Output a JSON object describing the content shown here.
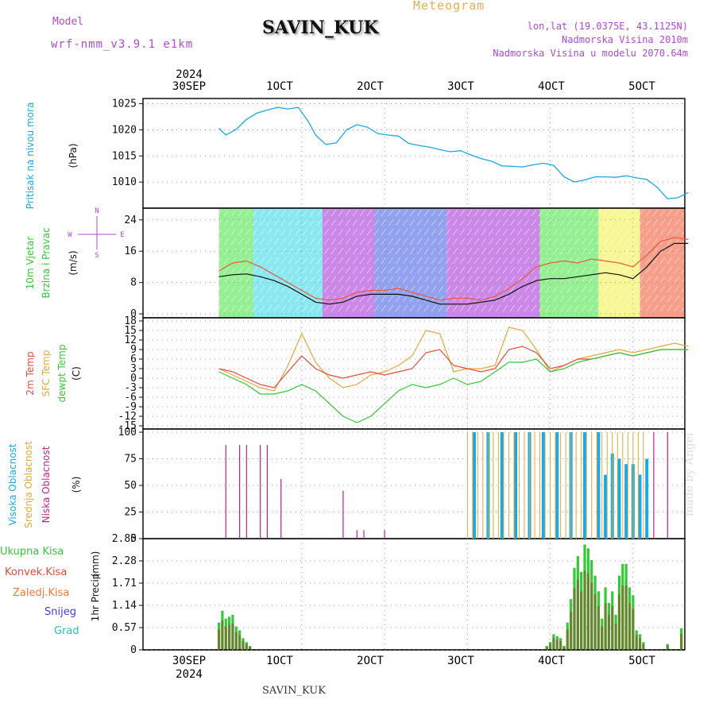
{
  "header": {
    "model_label": "Model",
    "model_name": "wrf-nmm_v3.9.1 e1km",
    "station": "SAVIN_KUK",
    "meteogram_title": "Meteogram",
    "coords": "lon,lat (19.0375E, 43.1125N)",
    "elevation": "Nadmorska Visina 2010m",
    "model_elevation": "Nadmorska Visina u modelu 2070.64m",
    "credit": "made by Angel",
    "footer_station": "SAVIN_KUK"
  },
  "colors": {
    "pressure": "#1ba8e6",
    "wind_avg": "#111111",
    "wind_gust": "#ee5a3a",
    "t2m": "#e64b3c",
    "sfc": "#e0a93c",
    "dewpt": "#35c837",
    "cloud_high": "#1ba8e6",
    "cloud_mid": "#e0a93c",
    "cloud_low": "#c0208a",
    "precip_total": "#35c837",
    "precip_conv": "#e64b3c",
    "precip_ice": "#f07a3a",
    "snow": "#4040e0",
    "grad": "#30c0b0"
  },
  "chart_data": {
    "type": "line",
    "x_unit": "hours since 2024-09-29 00 UTC",
    "x_range": [
      -22,
      135
    ],
    "top_ticks": [
      {
        "x": 24,
        "label": "30SEP",
        "year": "2024"
      },
      {
        "x": 48,
        "label": "1OCT"
      },
      {
        "x": 72,
        "label": "2OCT"
      },
      {
        "x": 96,
        "label": "3OCT"
      },
      {
        "x": 120,
        "label": "4OCT"
      },
      {
        "x": 144,
        "label": "5OCT"
      }
    ],
    "top_labels": {
      "year": "2024",
      "d1": "30SEP",
      "d2": "1OCT",
      "d3": "2OCT",
      "d4": "3OCT",
      "d5": "4OCT",
      "d6": "5OCT"
    },
    "bottom_labels": {
      "d1": "30SEP",
      "d2": "1OCT",
      "d3": "2OCT",
      "d4": "3OCT",
      "d5": "4OCT",
      "d6": "5OCT",
      "year": "2024"
    },
    "panels": {
      "pressure": {
        "ylabel": "Pritisak na nivou mora",
        "unit": "(hPa)",
        "ylim": [
          1005,
          1026
        ],
        "yticks": [
          "1010",
          "1015",
          "1020",
          "1025"
        ],
        "x": [
          0,
          2,
          5,
          8,
          11,
          14,
          17,
          20,
          23,
          26,
          28,
          31,
          34,
          37,
          40,
          43,
          46,
          49,
          52,
          55,
          58,
          61,
          64,
          67,
          70,
          73,
          76,
          79,
          82,
          85,
          88,
          91,
          94,
          97,
          100,
          103,
          106,
          109,
          112,
          115,
          118,
          121,
          124,
          127,
          130,
          133,
          136,
          139,
          142,
          145,
          148,
          151,
          154,
          157
        ],
        "values": [
          1020.3,
          1019.0,
          1020.1,
          1022.0,
          1023.2,
          1023.8,
          1024.3,
          1024.0,
          1024.3,
          1021.5,
          1019.0,
          1017.2,
          1017.5,
          1020.0,
          1021.0,
          1020.5,
          1019.3,
          1019.0,
          1018.8,
          1017.4,
          1017.0,
          1016.7,
          1016.2,
          1015.8,
          1016.0,
          1015.2,
          1014.5,
          1014.0,
          1013.1,
          1013.0,
          1012.9,
          1013.3,
          1013.6,
          1013.2,
          1011.0,
          1010.0,
          1010.4,
          1011.0,
          1011.0,
          1010.9,
          1011.2,
          1010.8,
          1010.5,
          1009.0,
          1006.8,
          1007.0,
          1008.0,
          1008.2,
          1009.0,
          1011.0,
          1013.5,
          1014.5,
          1014.5,
          1014.2
        ]
      },
      "wind": {
        "ylabel_1": "10m Vjetar",
        "ylabel_2": "Brzina i Pravac",
        "unit": "(m/s)",
        "compass": "N",
        "compass_e": "E",
        "compass_w": "W",
        "compass_s": "S",
        "ylim": [
          -1,
          27
        ],
        "yticks": [
          "0",
          "8",
          "16",
          "24"
        ],
        "x": [
          0,
          4,
          8,
          12,
          16,
          20,
          24,
          28,
          32,
          36,
          40,
          44,
          48,
          52,
          56,
          60,
          64,
          68,
          72,
          76,
          80,
          84,
          88,
          92,
          96,
          100,
          104,
          108,
          112,
          116,
          120,
          124,
          128,
          132,
          136,
          140,
          144,
          148,
          152,
          156
        ],
        "avg": [
          9.5,
          10.0,
          10.2,
          9.5,
          8.5,
          7.0,
          5.0,
          3.0,
          2.5,
          3.0,
          4.5,
          5.0,
          5.0,
          5.0,
          4.5,
          3.5,
          2.5,
          2.5,
          2.5,
          3.0,
          3.5,
          5.0,
          7.0,
          8.5,
          9.0,
          9.0,
          9.5,
          10.0,
          10.5,
          10.0,
          9.0,
          12.0,
          16.0,
          18.0,
          18.0,
          15.0,
          12.0,
          8.5,
          7.0,
          8.0
        ],
        "gust": [
          11.0,
          13.0,
          13.5,
          12.0,
          10.0,
          8.0,
          6.0,
          4.0,
          3.5,
          4.0,
          5.5,
          6.0,
          6.0,
          6.5,
          5.5,
          4.5,
          3.5,
          4.0,
          4.0,
          3.5,
          4.5,
          6.5,
          9.0,
          12.0,
          13.0,
          13.5,
          13.0,
          14.0,
          13.5,
          13.0,
          12.0,
          15.0,
          18.5,
          19.5,
          19.0,
          17.0,
          14.5,
          11.0,
          10.0,
          11.5
        ],
        "bands": [
          {
            "x0": 0,
            "x1": 10,
            "color": "green"
          },
          {
            "x0": 10,
            "x1": 30,
            "color": "cyan"
          },
          {
            "x0": 30,
            "x1": 45,
            "color": "purple"
          },
          {
            "x0": 45,
            "x1": 66,
            "color": "blue"
          },
          {
            "x0": 66,
            "x1": 93,
            "color": "purple"
          },
          {
            "x0": 93,
            "x1": 110,
            "color": "green"
          },
          {
            "x0": 110,
            "x1": 122,
            "color": "yellow"
          },
          {
            "x0": 122,
            "x1": 138,
            "color": "red"
          },
          {
            "x0": 138,
            "x1": 160,
            "color": "cyan"
          }
        ]
      },
      "temp": {
        "label_t2": "2m Temp",
        "label_sfc": "SFC Temp",
        "label_dew": "dewpt Temp",
        "unit": "(C)",
        "ylim": [
          -16,
          19
        ],
        "yticks": [
          "-15",
          "-12",
          "-9",
          "-6",
          "-3",
          "0",
          "3",
          "6",
          "9",
          "12",
          "15",
          "18"
        ],
        "x": [
          0,
          4,
          8,
          12,
          16,
          20,
          24,
          28,
          32,
          36,
          40,
          44,
          48,
          52,
          56,
          60,
          64,
          68,
          72,
          76,
          80,
          84,
          88,
          92,
          96,
          100,
          104,
          108,
          112,
          116,
          120,
          124,
          128,
          132,
          136,
          140,
          144,
          148,
          152,
          156
        ],
        "t2m": [
          3,
          2,
          0,
          -2,
          -3,
          2,
          7,
          3,
          1,
          0,
          1,
          2,
          1,
          2,
          3,
          8,
          9,
          4,
          3,
          2,
          3,
          9,
          10,
          8,
          3,
          4,
          6,
          6,
          7,
          8,
          7,
          8,
          9,
          9,
          9,
          8,
          6,
          5,
          5,
          6
        ],
        "sfc": [
          3,
          1,
          -1,
          -3,
          -4,
          4,
          14,
          5,
          0,
          -3,
          -2,
          1,
          2,
          4,
          7,
          15,
          14,
          2,
          3,
          3,
          4,
          16,
          15,
          9,
          2,
          4,
          6,
          7,
          8,
          9,
          8,
          9,
          10,
          11,
          10,
          9,
          6,
          5,
          6,
          10
        ],
        "dewpt": [
          2,
          0,
          -2,
          -5,
          -5,
          -4,
          -2,
          -4,
          -8,
          -12,
          -14,
          -12,
          -8,
          -4,
          -2,
          -3,
          -2,
          0,
          -2,
          -1,
          2,
          5,
          5,
          6,
          2,
          3,
          5,
          6,
          7,
          8,
          7,
          8,
          9,
          9,
          9,
          8,
          6,
          4,
          5,
          6
        ]
      },
      "cloud": {
        "label_high": "Visoka Oblacnost",
        "label_mid": "Srednja Oblacnost",
        "label_low": "Niska Oblacnost",
        "unit": "(%)",
        "ylim": [
          0,
          103
        ],
        "yticks": [
          "0",
          "25",
          "50",
          "75",
          "100"
        ],
        "low_spikes": [
          [
            2,
            88
          ],
          [
            6,
            88
          ],
          [
            8,
            88
          ],
          [
            12,
            88
          ],
          [
            14,
            88
          ],
          [
            18,
            56
          ],
          [
            36,
            45
          ],
          [
            40,
            8
          ],
          [
            42,
            8
          ],
          [
            48,
            8
          ],
          [
            126,
            100
          ],
          [
            130,
            100
          ],
          [
            136,
            100
          ],
          [
            140,
            100
          ],
          [
            144,
            100
          ],
          [
            148,
            100
          ],
          [
            152,
            100
          ],
          [
            156,
            100
          ]
        ],
        "high_range": [
          [
            72,
            124
          ]
        ],
        "high_bars": [
          [
            74,
            100
          ],
          [
            78,
            100
          ],
          [
            82,
            100
          ],
          [
            86,
            100
          ],
          [
            90,
            100
          ],
          [
            94,
            100
          ],
          [
            98,
            100
          ],
          [
            102,
            100
          ],
          [
            106,
            100
          ],
          [
            110,
            100
          ],
          [
            112,
            60
          ],
          [
            114,
            80
          ],
          [
            116,
            75
          ],
          [
            118,
            70
          ],
          [
            120,
            70
          ],
          [
            122,
            60
          ],
          [
            124,
            75
          ]
        ]
      },
      "precip": {
        "label_total": "Ukupna Kisa",
        "label_conv": "Konvek.Kisa",
        "label_ice": "Zaledj.Kisa",
        "label_snow": "Snijeg",
        "label_grad": "Grad",
        "ylabel": "1hr Precip",
        "unit": "(mm)",
        "ylim": [
          0,
          2.85
        ],
        "yticks": [
          "0",
          "0.57",
          "1.14",
          "1.71",
          "2.28",
          "2.85"
        ],
        "total": [
          [
            0,
            0.7
          ],
          [
            1,
            1.0
          ],
          [
            2,
            0.8
          ],
          [
            3,
            0.85
          ],
          [
            4,
            0.9
          ],
          [
            5,
            0.6
          ],
          [
            6,
            0.5
          ],
          [
            7,
            0.3
          ],
          [
            8,
            0.2
          ],
          [
            9,
            0.1
          ],
          [
            95,
            0.1
          ],
          [
            96,
            0.2
          ],
          [
            97,
            0.4
          ],
          [
            98,
            0.35
          ],
          [
            99,
            0.3
          ],
          [
            100,
            0.1
          ],
          [
            101,
            0.7
          ],
          [
            102,
            1.3
          ],
          [
            103,
            2.1
          ],
          [
            104,
            2.4
          ],
          [
            105,
            2.0
          ],
          [
            106,
            2.7
          ],
          [
            107,
            2.6
          ],
          [
            108,
            2.3
          ],
          [
            109,
            1.9
          ],
          [
            110,
            1.5
          ],
          [
            111,
            0.8
          ],
          [
            112,
            1.6
          ],
          [
            113,
            1.2
          ],
          [
            114,
            1.5
          ],
          [
            115,
            0.9
          ],
          [
            116,
            1.9
          ],
          [
            117,
            2.2
          ],
          [
            118,
            2.2
          ],
          [
            119,
            1.6
          ],
          [
            120,
            1.4
          ],
          [
            121,
            0.5
          ],
          [
            122,
            0.4
          ],
          [
            123,
            0.2
          ],
          [
            130,
            0.15
          ],
          [
            134,
            0.55
          ]
        ]
      }
    }
  }
}
